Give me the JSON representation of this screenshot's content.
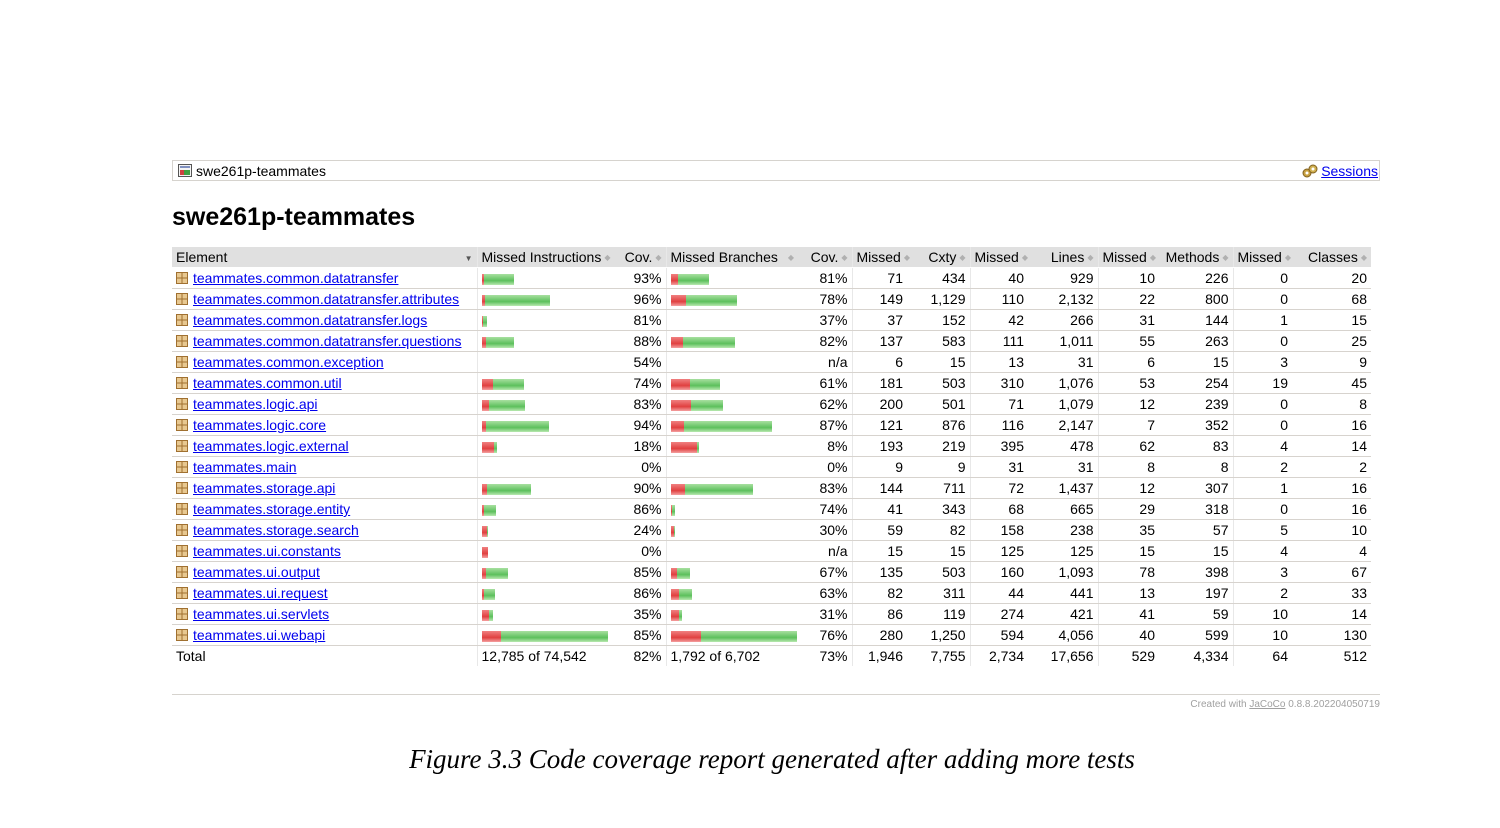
{
  "breadcrumb": {
    "project": "swe261p-teammates",
    "sessions_label": "Sessions"
  },
  "title": "swe261p-teammates",
  "columns": {
    "element": "Element",
    "missed_instructions": "Missed Instructions",
    "cov1": "Cov.",
    "missed_branches": "Missed Branches",
    "cov2": "Cov.",
    "missed_cxty": "Missed",
    "cxty": "Cxty",
    "missed_lines": "Missed",
    "lines": "Lines",
    "missed_methods": "Missed",
    "methods": "Methods",
    "missed_classes": "Missed",
    "classes": "Classes"
  },
  "rows": [
    {
      "name": "teammates.common.datatransfer",
      "instr_bar": {
        "missed_frac": 0.07,
        "total_frac": 0.252
      },
      "instr_cov": "93%",
      "branch_bar": {
        "missed_frac": 0.19,
        "total_frac": 0.305
      },
      "branch_cov": "81%",
      "missed_cxty": "71",
      "cxty": "434",
      "missed_lines": "40",
      "lines": "929",
      "missed_methods": "10",
      "methods": "226",
      "missed_classes": "0",
      "classes": "20"
    },
    {
      "name": "teammates.common.datatransfer.attributes",
      "instr_bar": {
        "missed_frac": 0.04,
        "total_frac": 0.54
      },
      "instr_cov": "96%",
      "branch_bar": {
        "missed_frac": 0.22,
        "total_frac": 0.52
      },
      "branch_cov": "78%",
      "missed_cxty": "149",
      "cxty": "1,129",
      "missed_lines": "110",
      "lines": "2,132",
      "missed_methods": "22",
      "methods": "800",
      "missed_classes": "0",
      "classes": "68"
    },
    {
      "name": "teammates.common.datatransfer.logs",
      "instr_bar": {
        "missed_frac": 0.19,
        "total_frac": 0.04
      },
      "instr_cov": "81%",
      "branch_bar": null,
      "branch_cov": "37%",
      "missed_cxty": "37",
      "cxty": "152",
      "missed_lines": "42",
      "lines": "266",
      "missed_methods": "31",
      "methods": "144",
      "missed_classes": "1",
      "classes": "15"
    },
    {
      "name": "teammates.common.datatransfer.questions",
      "instr_bar": {
        "missed_frac": 0.12,
        "total_frac": 0.25
      },
      "instr_cov": "88%",
      "branch_bar": {
        "missed_frac": 0.18,
        "total_frac": 0.51
      },
      "branch_cov": "82%",
      "missed_cxty": "137",
      "cxty": "583",
      "missed_lines": "111",
      "lines": "1,011",
      "missed_methods": "55",
      "methods": "263",
      "missed_classes": "0",
      "classes": "25"
    },
    {
      "name": "teammates.common.exception",
      "instr_bar": null,
      "instr_cov": "54%",
      "branch_bar": null,
      "branch_cov": "n/a",
      "missed_cxty": "6",
      "cxty": "15",
      "missed_lines": "13",
      "lines": "31",
      "missed_methods": "6",
      "methods": "15",
      "missed_classes": "3",
      "classes": "9"
    },
    {
      "name": "teammates.common.util",
      "instr_bar": {
        "missed_frac": 0.26,
        "total_frac": 0.33
      },
      "instr_cov": "74%",
      "branch_bar": {
        "missed_frac": 0.39,
        "total_frac": 0.39
      },
      "branch_cov": "61%",
      "missed_cxty": "181",
      "cxty": "503",
      "missed_lines": "310",
      "lines": "1,076",
      "missed_methods": "53",
      "methods": "254",
      "missed_classes": "19",
      "classes": "45"
    },
    {
      "name": "teammates.logic.api",
      "instr_bar": {
        "missed_frac": 0.17,
        "total_frac": 0.34
      },
      "instr_cov": "83%",
      "branch_bar": {
        "missed_frac": 0.38,
        "total_frac": 0.41
      },
      "branch_cov": "62%",
      "missed_cxty": "200",
      "cxty": "501",
      "missed_lines": "71",
      "lines": "1,079",
      "missed_methods": "12",
      "methods": "239",
      "missed_classes": "0",
      "classes": "8"
    },
    {
      "name": "teammates.logic.core",
      "instr_bar": {
        "missed_frac": 0.06,
        "total_frac": 0.53
      },
      "instr_cov": "94%",
      "branch_bar": {
        "missed_frac": 0.13,
        "total_frac": 0.8
      },
      "branch_cov": "87%",
      "missed_cxty": "121",
      "cxty": "876",
      "missed_lines": "116",
      "lines": "2,147",
      "missed_methods": "7",
      "methods": "352",
      "missed_classes": "0",
      "classes": "16"
    },
    {
      "name": "teammates.logic.external",
      "instr_bar": {
        "missed_frac": 0.82,
        "total_frac": 0.12
      },
      "instr_cov": "18%",
      "branch_bar": {
        "missed_frac": 0.92,
        "total_frac": 0.22
      },
      "branch_cov": "8%",
      "missed_cxty": "193",
      "cxty": "219",
      "missed_lines": "395",
      "lines": "478",
      "missed_methods": "62",
      "methods": "83",
      "missed_classes": "4",
      "classes": "14"
    },
    {
      "name": "teammates.main",
      "instr_bar": null,
      "instr_cov": "0%",
      "branch_bar": null,
      "branch_cov": "0%",
      "missed_cxty": "9",
      "cxty": "9",
      "missed_lines": "31",
      "lines": "31",
      "missed_methods": "8",
      "methods": "8",
      "missed_classes": "2",
      "classes": "2"
    },
    {
      "name": "teammates.storage.api",
      "instr_bar": {
        "missed_frac": 0.1,
        "total_frac": 0.385
      },
      "instr_cov": "90%",
      "branch_bar": {
        "missed_frac": 0.17,
        "total_frac": 0.65
      },
      "branch_cov": "83%",
      "missed_cxty": "144",
      "cxty": "711",
      "missed_lines": "72",
      "lines": "1,437",
      "missed_methods": "12",
      "methods": "307",
      "missed_classes": "1",
      "classes": "16"
    },
    {
      "name": "teammates.storage.entity",
      "instr_bar": {
        "missed_frac": 0.14,
        "total_frac": 0.11
      },
      "instr_cov": "86%",
      "branch_bar": {
        "missed_frac": 0.26,
        "total_frac": 0.03
      },
      "branch_cov": "74%",
      "missed_cxty": "41",
      "cxty": "343",
      "missed_lines": "68",
      "lines": "665",
      "missed_methods": "29",
      "methods": "318",
      "missed_classes": "0",
      "classes": "16"
    },
    {
      "name": "teammates.storage.search",
      "instr_bar": {
        "missed_frac": 0.76,
        "total_frac": 0.045
      },
      "instr_cov": "24%",
      "branch_bar": {
        "missed_frac": 0.7,
        "total_frac": 0.03
      },
      "branch_cov": "30%",
      "missed_cxty": "59",
      "cxty": "82",
      "missed_lines": "158",
      "lines": "238",
      "missed_methods": "35",
      "methods": "57",
      "missed_classes": "5",
      "classes": "10"
    },
    {
      "name": "teammates.ui.constants",
      "instr_bar": {
        "missed_frac": 1.0,
        "total_frac": 0.045
      },
      "instr_cov": "0%",
      "branch_bar": null,
      "branch_cov": "n/a",
      "missed_cxty": "15",
      "cxty": "15",
      "missed_lines": "125",
      "lines": "125",
      "missed_methods": "15",
      "methods": "15",
      "missed_classes": "4",
      "classes": "4"
    },
    {
      "name": "teammates.ui.output",
      "instr_bar": {
        "missed_frac": 0.15,
        "total_frac": 0.21
      },
      "instr_cov": "85%",
      "branch_bar": {
        "missed_frac": 0.33,
        "total_frac": 0.15
      },
      "branch_cov": "67%",
      "missed_cxty": "135",
      "cxty": "503",
      "missed_lines": "160",
      "lines": "1,093",
      "missed_methods": "78",
      "methods": "398",
      "missed_classes": "3",
      "classes": "67"
    },
    {
      "name": "teammates.ui.request",
      "instr_bar": {
        "missed_frac": 0.14,
        "total_frac": 0.1
      },
      "instr_cov": "86%",
      "branch_bar": {
        "missed_frac": 0.37,
        "total_frac": 0.165
      },
      "branch_cov": "63%",
      "missed_cxty": "82",
      "cxty": "311",
      "missed_lines": "44",
      "lines": "441",
      "missed_methods": "13",
      "methods": "197",
      "missed_classes": "2",
      "classes": "33"
    },
    {
      "name": "teammates.ui.servlets",
      "instr_bar": {
        "missed_frac": 0.65,
        "total_frac": 0.085
      },
      "instr_cov": "35%",
      "branch_bar": {
        "missed_frac": 0.69,
        "total_frac": 0.085
      },
      "branch_cov": "31%",
      "missed_cxty": "86",
      "cxty": "119",
      "missed_lines": "274",
      "lines": "421",
      "missed_methods": "41",
      "methods": "59",
      "missed_classes": "10",
      "classes": "14"
    },
    {
      "name": "teammates.ui.webapi",
      "instr_bar": {
        "missed_frac": 0.15,
        "total_frac": 1.0
      },
      "instr_cov": "85%",
      "branch_bar": {
        "missed_frac": 0.24,
        "total_frac": 1.0
      },
      "branch_cov": "76%",
      "missed_cxty": "280",
      "cxty": "1,250",
      "missed_lines": "594",
      "lines": "4,056",
      "missed_methods": "40",
      "methods": "599",
      "missed_classes": "10",
      "classes": "130"
    }
  ],
  "total": {
    "label": "Total",
    "instr": "12,785 of 74,542",
    "instr_cov": "82%",
    "branch": "1,792 of 6,702",
    "branch_cov": "73%",
    "missed_cxty": "1,946",
    "cxty": "7,755",
    "missed_lines": "2,734",
    "lines": "17,656",
    "missed_methods": "529",
    "methods": "4,334",
    "missed_classes": "64",
    "classes": "512"
  },
  "footer": {
    "prefix": "Created with ",
    "tool": "JaCoCo",
    "version": " 0.8.8.202204050719"
  },
  "caption": "Figure 3.3 Code coverage report generated after adding more tests",
  "colors": {
    "missed": "#e04040",
    "covered": "#5cc05c",
    "link": "#0000ee",
    "header_bg": "#e0e0e0"
  }
}
